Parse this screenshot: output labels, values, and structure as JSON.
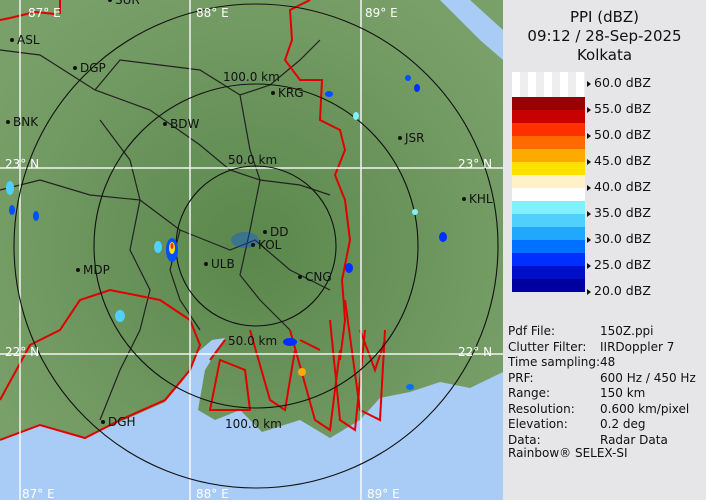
{
  "panel": {
    "title": "PPI (dBZ)",
    "time": "09:12 / 28-Sep-2025",
    "site": "Kolkata",
    "legend": [
      {
        "label": "60.0 dBZ"
      },
      {
        "label": "55.0 dBZ"
      },
      {
        "label": "50.0 dBZ"
      },
      {
        "label": "45.0 dBZ"
      },
      {
        "label": "40.0 dBZ"
      },
      {
        "label": "35.0 dBZ"
      },
      {
        "label": "30.0 dBZ"
      },
      {
        "label": "25.0 dBZ"
      },
      {
        "label": "20.0 dBZ"
      }
    ],
    "legend_colors": [
      "#9a0000",
      "#c80000",
      "#ff3000",
      "#ff6a00",
      "#ffaa00",
      "#ffe000",
      "#fff2c8",
      "#ffffff",
      "#80f0ff",
      "#50d0ff",
      "#20a8ff",
      "#0070ff",
      "#0030ff",
      "#0010c8",
      "#0000a0"
    ],
    "info": [
      {
        "k": "Pdf File:",
        "v": "150Z.ppi"
      },
      {
        "k": "Clutter Filter:",
        "v": "IIRDoppler 7"
      },
      {
        "k": "Time sampling:",
        "v": "48"
      },
      {
        "k": "PRF:",
        "v": "600 Hz / 450 Hz"
      },
      {
        "k": "Range:",
        "v": "150 km"
      },
      {
        "k": "Resolution:",
        "v": "0.600 km/pixel"
      },
      {
        "k": "Elevation:",
        "v": "0.2 deg"
      },
      {
        "k": "Data:",
        "v": "Radar Data"
      }
    ],
    "footer": "Rainbow® SELEX-SI"
  },
  "map": {
    "range_rings": [
      "50.0 km",
      "100.0 km",
      "50.0 km",
      "100.0 km"
    ],
    "lon_labels": [
      "87° E",
      "88° E",
      "89° E"
    ],
    "lat_labels": [
      "23° N",
      "22° N"
    ],
    "stations": [
      "SUR",
      "ASL",
      "DGP",
      "BNK",
      "BDW",
      "KRG",
      "JSR",
      "KHL",
      "DD",
      "KOL",
      "ULB",
      "CNG",
      "MDP",
      "DGH"
    ],
    "colors": {
      "land": "#5f8a4f",
      "sea": "#a8ccf5",
      "border": "#e00000",
      "grid": "#ffffff"
    }
  }
}
